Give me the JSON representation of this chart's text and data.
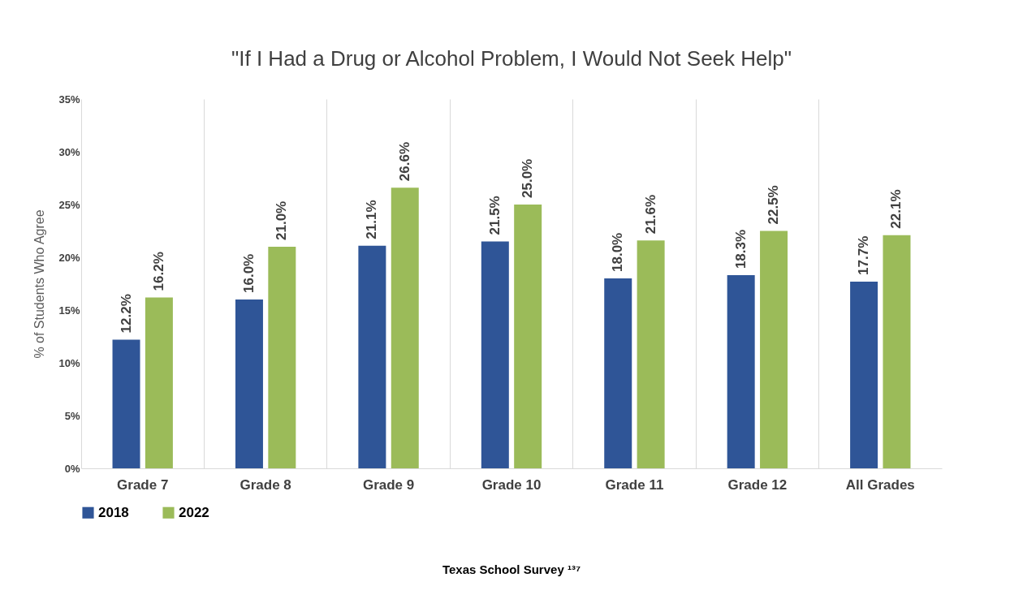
{
  "chart_data": {
    "type": "bar",
    "title": "\"If I Had a Drug or Alcohol Problem, I Would Not Seek Help\"",
    "ylabel": "% of Students Who Agree",
    "categories": [
      "Grade 7",
      "Grade 8",
      "Grade 9",
      "Grade 10",
      "Grade 11",
      "Grade 12",
      "All Grades"
    ],
    "series": [
      {
        "name": "2018",
        "color": "#2f5597",
        "values": [
          12.2,
          16.0,
          21.1,
          21.5,
          18.0,
          18.3,
          17.7
        ],
        "value_labels": [
          "12.2%",
          "16.0%",
          "21.1%",
          "21.5%",
          "18.0%",
          "18.3%",
          "17.7%"
        ]
      },
      {
        "name": "2022",
        "color": "#9bbb59",
        "values": [
          16.2,
          21.0,
          26.6,
          25.0,
          21.6,
          22.5,
          22.1
        ],
        "value_labels": [
          "16.2%",
          "21.0%",
          "26.6%",
          "25.0%",
          "21.6%",
          "22.5%",
          "22.1%"
        ]
      }
    ],
    "ylim": [
      0,
      35
    ],
    "yticks": [
      {
        "value": 0,
        "label": "0%"
      },
      {
        "value": 5,
        "label": "5%"
      },
      {
        "value": 10,
        "label": "10%"
      },
      {
        "value": 15,
        "label": "15%"
      },
      {
        "value": 20,
        "label": "20%"
      },
      {
        "value": 25,
        "label": "25%"
      },
      {
        "value": 30,
        "label": "30%"
      },
      {
        "value": 35,
        "label": "35%"
      }
    ],
    "grid": "x",
    "legend": "bottom",
    "annotations": [
      "Texas School Survey ¹³⁷"
    ]
  }
}
